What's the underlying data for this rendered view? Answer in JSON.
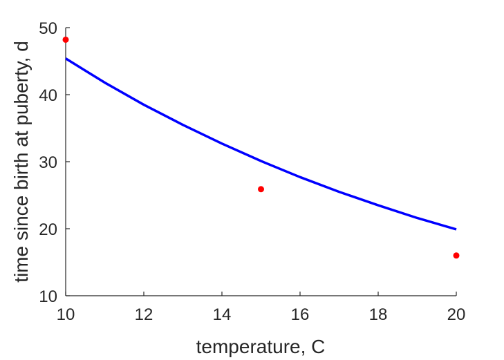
{
  "chart_data": {
    "type": "scatter",
    "xlabel": "temperature, C",
    "ylabel": "time since birth at puberty, d",
    "xlim": [
      10,
      20
    ],
    "ylim": [
      10,
      50
    ],
    "xticks": [
      10,
      12,
      14,
      16,
      18,
      20
    ],
    "yticks": [
      10,
      20,
      30,
      40,
      50
    ],
    "grid": false,
    "series": [
      {
        "type": "scatter",
        "color": "#ff0000",
        "points": [
          {
            "x": 10,
            "y": 48.2
          },
          {
            "x": 15,
            "y": 25.9
          },
          {
            "x": 20,
            "y": 16.0
          }
        ]
      },
      {
        "type": "line",
        "color": "#0000ff",
        "points": [
          {
            "x": 10,
            "y": 45.4
          },
          {
            "x": 11,
            "y": 41.8
          },
          {
            "x": 12,
            "y": 38.5
          },
          {
            "x": 13,
            "y": 35.5
          },
          {
            "x": 14,
            "y": 32.7
          },
          {
            "x": 15,
            "y": 30.1
          },
          {
            "x": 16,
            "y": 27.7
          },
          {
            "x": 17,
            "y": 25.5
          },
          {
            "x": 18,
            "y": 23.5
          },
          {
            "x": 19,
            "y": 21.6
          },
          {
            "x": 20,
            "y": 19.9
          }
        ]
      }
    ]
  }
}
